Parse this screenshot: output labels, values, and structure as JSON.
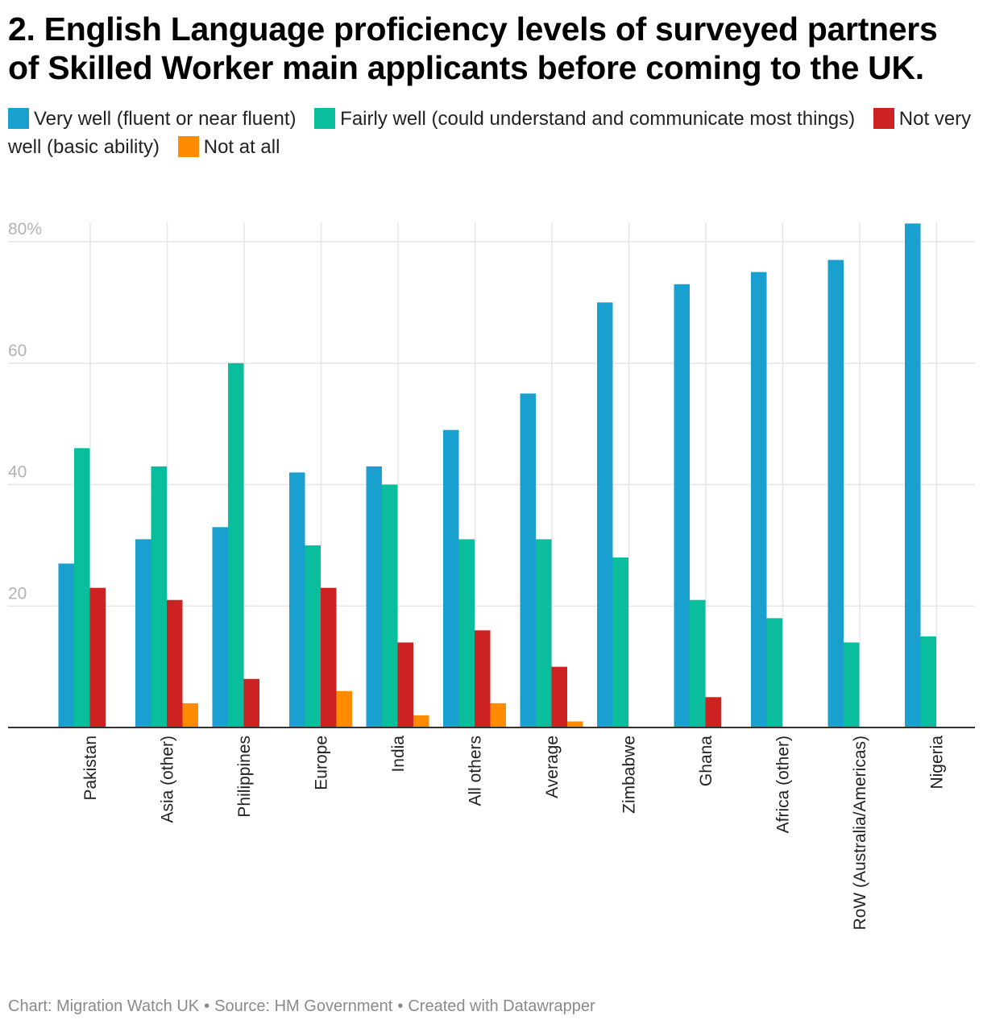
{
  "title": "2. English Language proficiency levels of surveyed partners of Skilled Worker main applicants before coming to the UK.",
  "footer": {
    "chart_credit": "Chart: Migration Watch UK",
    "source": "Source: HM Government",
    "created_with": "Created with Datawrapper",
    "separator": "•"
  },
  "chart_data": {
    "type": "bar",
    "title": "2. English Language proficiency levels of surveyed partners of Skilled Worker main applicants before coming to the UK.",
    "xlabel": "",
    "ylabel": "",
    "ylim": [
      0,
      80
    ],
    "y_ticks": [
      {
        "value": 20,
        "label": "20"
      },
      {
        "value": 40,
        "label": "40"
      },
      {
        "value": 60,
        "label": "60"
      },
      {
        "value": 80,
        "label": "80%"
      }
    ],
    "grid": true,
    "legend_position": "top",
    "categories": [
      "Pakistan",
      "Asia (other)",
      "Philippines",
      "Europe",
      "India",
      "All others",
      "Average",
      "Zimbabwe",
      "Ghana",
      "Africa (other)",
      "RoW (Australia/Americas)",
      "Nigeria"
    ],
    "series": [
      {
        "name": "Very well (fluent or near fluent)",
        "color": "#1aa0cf",
        "values": [
          27,
          31,
          33,
          42,
          43,
          49,
          55,
          70,
          73,
          75,
          77,
          83
        ]
      },
      {
        "name": "Fairly well (could understand and communicate most things)",
        "color": "#0abd9c",
        "values": [
          46,
          43,
          60,
          30,
          40,
          31,
          31,
          28,
          21,
          18,
          14,
          15
        ]
      },
      {
        "name": "Not very well (basic ability)",
        "color": "#cc2222",
        "values": [
          23,
          21,
          8,
          23,
          14,
          16,
          10,
          0,
          5,
          0,
          0,
          0
        ]
      },
      {
        "name": "Not at all",
        "color": "#ff8c00",
        "values": [
          0,
          4,
          0,
          6,
          2,
          4,
          1,
          0,
          0,
          0,
          0,
          0
        ]
      }
    ]
  }
}
